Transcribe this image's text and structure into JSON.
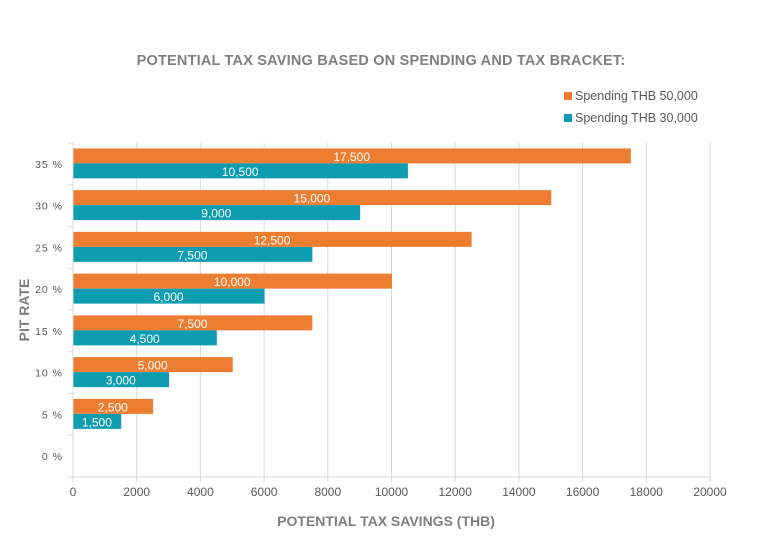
{
  "chart_data": {
    "type": "bar",
    "orientation": "horizontal",
    "title": "POTENTIAL TAX SAVING BASED ON SPENDING AND TAX BRACKET:",
    "xlabel": "POTENTIAL TAX SAVINGS (THB)",
    "ylabel": "PIT RATE",
    "categories": [
      "0 %",
      "5 %",
      "10 %",
      "15 %",
      "20 %",
      "25 %",
      "30 %",
      "35 %"
    ],
    "xlim": [
      0,
      20000
    ],
    "xticks": [
      0,
      2000,
      4000,
      6000,
      8000,
      10000,
      12000,
      14000,
      16000,
      18000,
      20000
    ],
    "grid": "vertical",
    "legend_position": "top-right",
    "series": [
      {
        "name": "Spending THB 50,000",
        "color": "#ED7D31",
        "values": [
          0,
          2500,
          5000,
          7500,
          10000,
          12500,
          15000,
          17500
        ],
        "labels": [
          "",
          "2,500",
          "5,000",
          "7,500",
          "10,000",
          "12,500",
          "15,000",
          "17,500"
        ]
      },
      {
        "name": "Spending THB 30,000",
        "color": "#0E9DB0",
        "values": [
          0,
          1500,
          3000,
          4500,
          6000,
          7500,
          9000,
          10500
        ],
        "labels": [
          "",
          "1,500",
          "3,000",
          "4,500",
          "6,000",
          "7,500",
          "9,000",
          "10,500"
        ]
      }
    ],
    "legend": [
      "Spending THB 50,000",
      "Spending THB 30,000"
    ]
  }
}
